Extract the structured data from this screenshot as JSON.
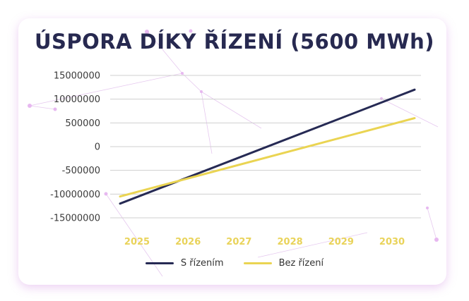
{
  "chart_data": {
    "type": "line",
    "title": "ÚSPORA DÍKY ŘÍZENÍ (5600 MWh)",
    "x": [
      "2025",
      "2026",
      "2027",
      "2028",
      "2029",
      "2030"
    ],
    "y_ticks": [
      "15000000",
      "10000000",
      "500000",
      "0",
      "-500000",
      "-10000000",
      "-15000000"
    ],
    "series": [
      {
        "name": "S řízením",
        "color": "#262a54",
        "start": -12000000,
        "end": 12000000
      },
      {
        "name": "Bez řízení",
        "color": "#ead452",
        "start": -10500000,
        "end": 6000000
      }
    ],
    "ylim": [
      -15000000,
      15000000
    ],
    "grid": true,
    "legend_position": "bottom"
  }
}
